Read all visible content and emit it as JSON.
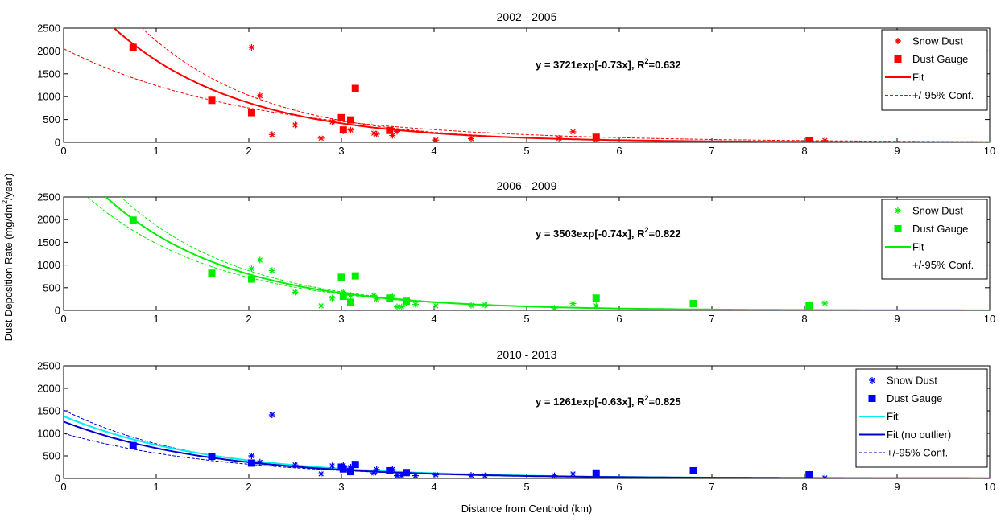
{
  "figure": {
    "ylabel_main": "Dust Deposition Rate (mg/dm",
    "ylabel_sup": "2",
    "ylabel_tail": "/year)",
    "xlabel": "Distance from Centroid (km)"
  },
  "chart_data": [
    {
      "type": "scatter",
      "title": "2002 - 2005",
      "color": "#ff0000",
      "xlim": [
        0,
        10
      ],
      "ylim": [
        0,
        2500
      ],
      "xticks": [
        0,
        1,
        2,
        3,
        4,
        5,
        6,
        7,
        8,
        9,
        10
      ],
      "yticks": [
        0,
        500,
        1000,
        1500,
        2000,
        2500
      ],
      "legend_position": "top-right",
      "equation": {
        "main": "y = 3721exp[-0.73x], R",
        "sup": "2",
        "tail": "=0.632"
      },
      "snow_dust": [
        [
          2.03,
          2080
        ],
        [
          2.12,
          1020
        ],
        [
          2.25,
          170
        ],
        [
          2.5,
          380
        ],
        [
          2.78,
          90
        ],
        [
          2.9,
          450
        ],
        [
          3.02,
          250
        ],
        [
          3.1,
          270
        ],
        [
          3.35,
          200
        ],
        [
          3.38,
          180
        ],
        [
          3.55,
          150
        ],
        [
          3.6,
          240
        ],
        [
          4.02,
          50
        ],
        [
          4.4,
          80
        ],
        [
          5.35,
          90
        ],
        [
          5.5,
          230
        ],
        [
          5.75,
          60
        ],
        [
          8.05,
          40
        ],
        [
          8.22,
          40
        ]
      ],
      "dust_gauge": [
        [
          0.75,
          2080
        ],
        [
          1.6,
          920
        ],
        [
          2.03,
          650
        ],
        [
          3.0,
          540
        ],
        [
          3.02,
          270
        ],
        [
          3.1,
          490
        ],
        [
          3.15,
          1180
        ],
        [
          3.52,
          260
        ],
        [
          5.75,
          110
        ],
        [
          8.05,
          30
        ]
      ],
      "fits": [
        {
          "label": "Fit",
          "a": 3721,
          "b": -0.73,
          "color": "#ff0000",
          "style": "solid"
        }
      ],
      "conf": {
        "label": "+/-95% Conf.",
        "a_upper": 4800,
        "b_upper": -0.77,
        "a_lower": 2050,
        "b_lower": -0.5
      },
      "legend": [
        {
          "kind": "star",
          "label": "Snow Dust",
          "color": "#ff0000"
        },
        {
          "kind": "square",
          "label": "Dust Gauge",
          "color": "#ff0000"
        },
        {
          "kind": "line",
          "label": "Fit",
          "color": "#ff0000"
        },
        {
          "kind": "dash",
          "label": "+/-95% Conf.",
          "color": "#ff0000"
        }
      ]
    },
    {
      "type": "scatter",
      "title": "2006 - 2009",
      "color": "#00ee00",
      "xlim": [
        0,
        10
      ],
      "ylim": [
        0,
        2500
      ],
      "xticks": [
        0,
        1,
        2,
        3,
        4,
        5,
        6,
        7,
        8,
        9,
        10
      ],
      "yticks": [
        0,
        500,
        1000,
        1500,
        2000,
        2500
      ],
      "legend_position": "top-right",
      "equation": {
        "main": "y = 3503exp[-0.74x], R",
        "sup": "2",
        "tail": "=0.822"
      },
      "snow_dust": [
        [
          2.03,
          920
        ],
        [
          2.12,
          1110
        ],
        [
          2.25,
          880
        ],
        [
          2.5,
          400
        ],
        [
          2.78,
          100
        ],
        [
          2.9,
          270
        ],
        [
          3.02,
          400
        ],
        [
          3.1,
          330
        ],
        [
          3.35,
          330
        ],
        [
          3.38,
          250
        ],
        [
          3.55,
          300
        ],
        [
          3.6,
          80
        ],
        [
          3.65,
          80
        ],
        [
          3.7,
          170
        ],
        [
          3.8,
          130
        ],
        [
          4.02,
          100
        ],
        [
          4.4,
          110
        ],
        [
          4.55,
          120
        ],
        [
          5.3,
          50
        ],
        [
          5.5,
          150
        ],
        [
          5.75,
          100
        ],
        [
          8.22,
          160
        ]
      ],
      "dust_gauge": [
        [
          0.75,
          1990
        ],
        [
          1.6,
          820
        ],
        [
          2.03,
          690
        ],
        [
          3.0,
          730
        ],
        [
          3.02,
          310
        ],
        [
          3.1,
          180
        ],
        [
          3.15,
          760
        ],
        [
          3.52,
          270
        ],
        [
          3.7,
          200
        ],
        [
          5.75,
          270
        ],
        [
          6.8,
          150
        ],
        [
          8.05,
          100
        ]
      ],
      "fits": [
        {
          "label": "Fit",
          "a": 3503,
          "b": -0.74,
          "color": "#00ee00",
          "style": "solid"
        }
      ],
      "conf": {
        "label": "+/-95% Conf.",
        "a_upper": 4000,
        "b_upper": -0.76,
        "a_lower": 3000,
        "b_lower": -0.71
      },
      "legend": [
        {
          "kind": "star",
          "label": "Snow Dust",
          "color": "#00ee00"
        },
        {
          "kind": "square",
          "label": "Dust Gauge",
          "color": "#00ee00"
        },
        {
          "kind": "line",
          "label": "Fit",
          "color": "#00ee00"
        },
        {
          "kind": "dash",
          "label": "+/-95% Conf.",
          "color": "#00ee00"
        }
      ]
    },
    {
      "type": "scatter",
      "title": "2010 - 2013",
      "color": "#0000ff",
      "xlim": [
        0,
        10
      ],
      "ylim": [
        0,
        2500
      ],
      "xticks": [
        0,
        1,
        2,
        3,
        4,
        5,
        6,
        7,
        8,
        9,
        10
      ],
      "yticks": [
        0,
        500,
        1000,
        1500,
        2000,
        2500
      ],
      "legend_position": "top-right",
      "equation": {
        "main": "y = 1261exp[-0.63x], R",
        "sup": "2",
        "tail": "=0.825"
      },
      "snow_dust": [
        [
          2.03,
          500
        ],
        [
          2.12,
          360
        ],
        [
          2.25,
          1410
        ],
        [
          2.5,
          300
        ],
        [
          2.78,
          100
        ],
        [
          2.9,
          280
        ],
        [
          3.02,
          290
        ],
        [
          3.1,
          250
        ],
        [
          3.35,
          120
        ],
        [
          3.38,
          200
        ],
        [
          3.55,
          200
        ],
        [
          3.6,
          60
        ],
        [
          3.65,
          60
        ],
        [
          3.8,
          60
        ],
        [
          4.02,
          80
        ],
        [
          4.4,
          70
        ],
        [
          4.55,
          60
        ],
        [
          5.3,
          60
        ],
        [
          5.5,
          100
        ],
        [
          5.75,
          50
        ],
        [
          8.22,
          10
        ]
      ],
      "dust_gauge": [
        [
          0.75,
          730
        ],
        [
          1.6,
          490
        ],
        [
          2.03,
          340
        ],
        [
          3.0,
          250
        ],
        [
          3.02,
          210
        ],
        [
          3.1,
          150
        ],
        [
          3.15,
          310
        ],
        [
          3.52,
          170
        ],
        [
          3.7,
          130
        ],
        [
          5.75,
          120
        ],
        [
          6.8,
          170
        ],
        [
          8.05,
          80
        ]
      ],
      "fits": [
        {
          "label": "Fit",
          "a": 1380,
          "b": -0.62,
          "color": "#00eeee",
          "style": "solid"
        },
        {
          "label": "Fit (no outlier)",
          "a": 1261,
          "b": -0.63,
          "color": "#0000cc",
          "style": "solid"
        }
      ],
      "conf": {
        "label": "+/-95% Conf.",
        "a_upper": 1520,
        "b_upper": -0.68,
        "a_lower": 1000,
        "b_lower": -0.58
      },
      "legend": [
        {
          "kind": "star",
          "label": "Snow Dust",
          "color": "#0000ff"
        },
        {
          "kind": "square",
          "label": "Dust Gauge",
          "color": "#0000ff"
        },
        {
          "kind": "line",
          "label": "Fit",
          "color": "#00eeee"
        },
        {
          "kind": "line",
          "label": "Fit (no outlier)",
          "color": "#0000cc"
        },
        {
          "kind": "dash",
          "label": "+/-95% Conf.",
          "color": "#0000cc"
        }
      ]
    }
  ]
}
